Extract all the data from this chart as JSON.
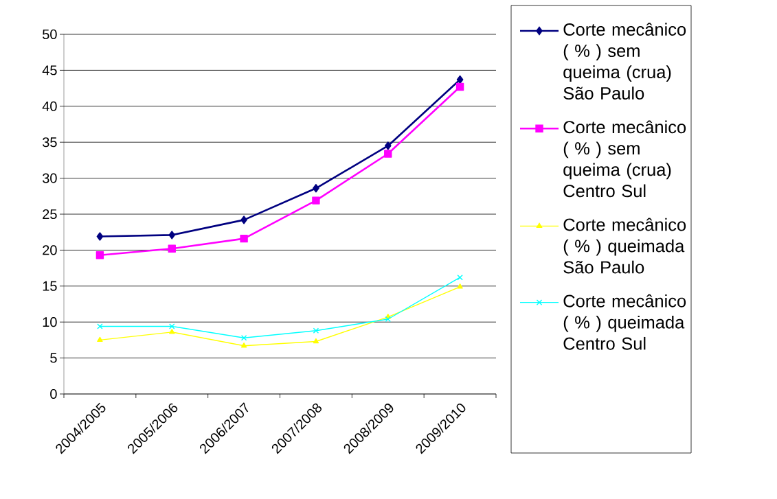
{
  "chart_data": {
    "type": "line",
    "categories": [
      "2004/2005",
      "2005/2006",
      "2006/2007",
      "2007/2008",
      "2008/2009",
      "2009/2010"
    ],
    "series": [
      {
        "name": "Corte mecânico ( % ) sem queima (crua) São Paulo",
        "color": "#000080",
        "marker": "diamond",
        "values": [
          21.9,
          22.1,
          24.2,
          28.6,
          34.5,
          43.7
        ]
      },
      {
        "name": "Corte mecânico ( % ) sem queima (crua) Centro Sul",
        "color": "#ff00ff",
        "marker": "square",
        "values": [
          19.3,
          20.2,
          21.6,
          26.9,
          33.4,
          42.7
        ]
      },
      {
        "name": "Corte mecânico ( % ) queimada São Paulo",
        "color": "#ffff00",
        "marker": "triangle",
        "values": [
          7.5,
          8.6,
          6.7,
          7.3,
          10.7,
          14.9
        ]
      },
      {
        "name": "Corte mecânico ( % ) queimada Centro Sul",
        "color": "#00ffff",
        "marker": "cross",
        "values": [
          9.4,
          9.4,
          7.8,
          8.8,
          10.4,
          16.2
        ]
      }
    ],
    "ylim": [
      0,
      50
    ],
    "yticks": [
      0,
      5,
      10,
      15,
      20,
      25,
      30,
      35,
      40,
      45,
      50
    ],
    "grid": "y",
    "legend": "right"
  }
}
